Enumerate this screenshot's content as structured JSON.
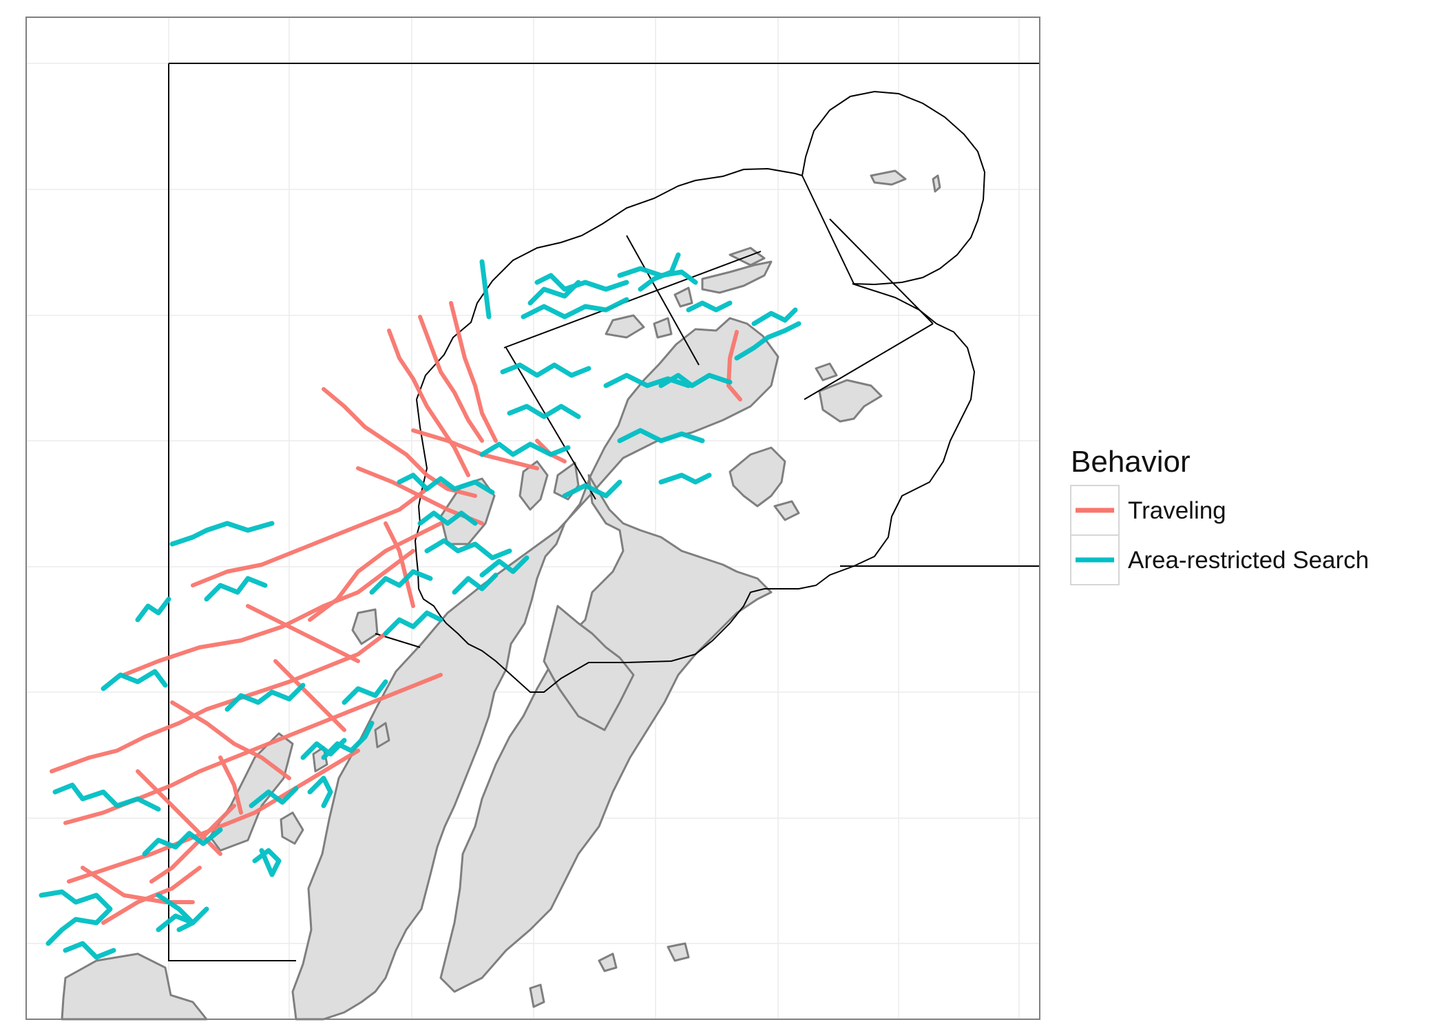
{
  "legend": {
    "title": "Behavior",
    "items": [
      {
        "label": "Traveling",
        "color": "#F8766D"
      },
      {
        "label": "Area-restricted Search",
        "color": "#00BFC4"
      }
    ]
  },
  "colors": {
    "land": "#DEDEDE",
    "land_outline": "#7F7F7F",
    "boundary": "#000000",
    "grid": "#EBEBEB",
    "panel_border": "#7F7F7F",
    "traveling": "#F8766D",
    "search": "#00BFC4"
  }
}
